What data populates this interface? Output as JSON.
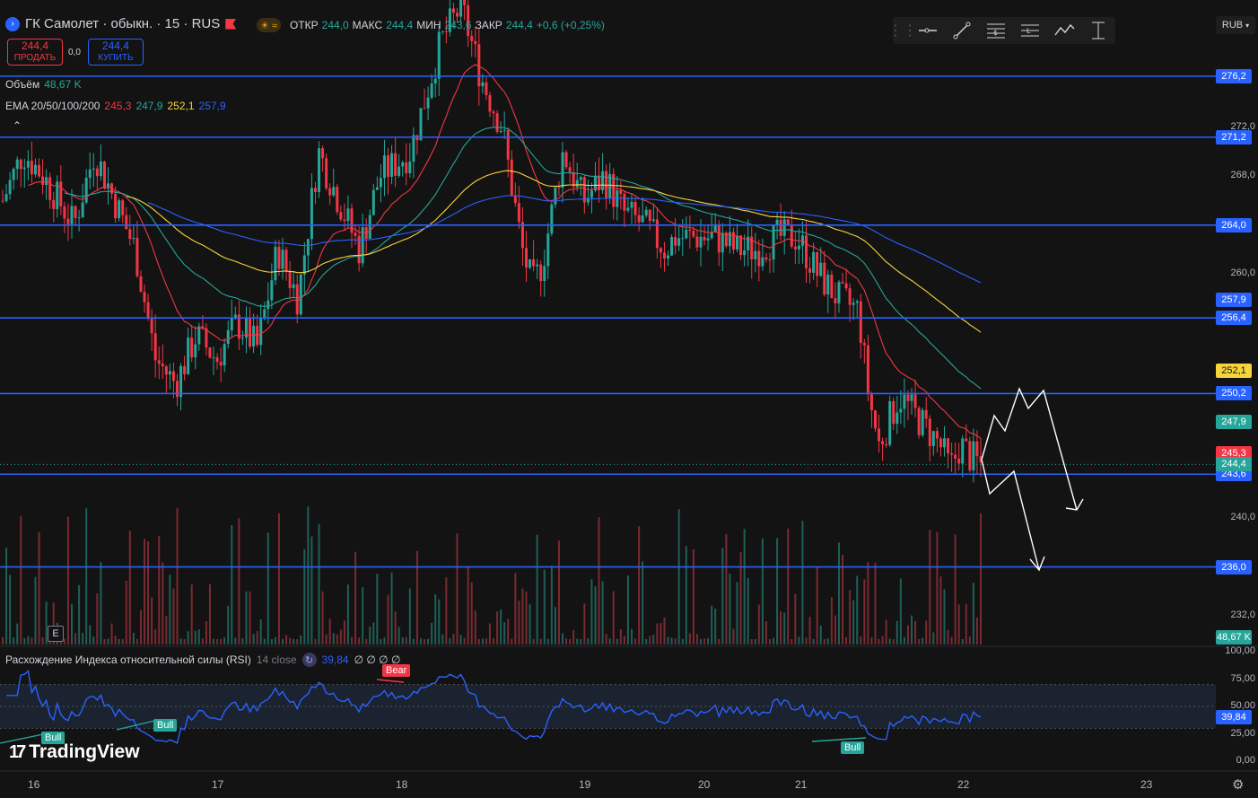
{
  "header": {
    "title": "ГК Самолет · обыкн. · 15 · RUS",
    "ohlc": [
      {
        "k": "ОТКР",
        "v": "244,0"
      },
      {
        "k": "МАКС",
        "v": "244,4"
      },
      {
        "k": "МИН",
        "v": "243,6"
      },
      {
        "k": "ЗАКР",
        "v": "244,4"
      }
    ],
    "change": "+0,6 (+0,25%)"
  },
  "trade": {
    "sell_price": "244,4",
    "sell_label": "ПРОДАТЬ",
    "spread": "0,0",
    "buy_price": "244,4",
    "buy_label": "КУПИТЬ"
  },
  "indicators": {
    "volume_label": "Объём",
    "volume_value": "48,67 K",
    "ema_label": "EMA 20/50/100/200",
    "ema_values": [
      "245,3",
      "247,9",
      "252,1",
      "257,9"
    ]
  },
  "currency": "RUB",
  "rsi": {
    "title": "Расхождение Индекса относительной силы (RSI)",
    "params": "14 close",
    "value": "39,84",
    "extra": "∅ ∅ ∅ ∅",
    "levels": [
      "100,00",
      "75,00",
      "50,00",
      "25,00",
      "0,00"
    ],
    "divergences": [
      {
        "label": "Bull",
        "type": "bull"
      },
      {
        "label": "Bull",
        "type": "bull"
      },
      {
        "label": "Bear",
        "type": "bear"
      },
      {
        "label": "Bull",
        "type": "bull"
      }
    ]
  },
  "brand": "TradingView",
  "e_badge": "E",
  "colors": {
    "up": "#26a69a",
    "down": "#f23645",
    "accent": "#2962ff",
    "rsi": "#2962ff"
  },
  "chart_data": {
    "type": "candlestick",
    "symbol": "ГК Самолет · обыкн.",
    "interval": "15",
    "price_range": [
      230.5,
      282
    ],
    "x_ticks": [
      "16",
      "17",
      "18",
      "19",
      "20",
      "21",
      "22",
      "23"
    ],
    "price_ticks": [
      "272,0",
      "268,0",
      "260,0",
      "240,0",
      "232,0"
    ],
    "horizontal_levels": [
      "276,2",
      "271,2",
      "264,0",
      "256,4",
      "250,2",
      "243,6",
      "236,0"
    ],
    "ema_tags": [
      {
        "label": "252,1",
        "color": "#f7d43c"
      },
      {
        "label": "247,9",
        "color": "#26a69a"
      },
      {
        "label": "245,3",
        "color": "#f23645"
      },
      {
        "label": "257,9",
        "color": "#2962ff"
      }
    ],
    "last_price_tag": {
      "label": "244,4",
      "color": "#26a69a"
    },
    "volume_tag": "48,67 K",
    "close_path": [
      [
        0,
        266
      ],
      [
        0.02,
        270
      ],
      [
        0.04,
        268
      ],
      [
        0.07,
        264
      ],
      [
        0.09,
        270
      ],
      [
        0.11,
        266
      ],
      [
        0.13,
        262
      ],
      [
        0.15,
        253
      ],
      [
        0.17,
        251
      ],
      [
        0.19,
        255
      ],
      [
        0.21,
        253
      ],
      [
        0.23,
        256
      ],
      [
        0.25,
        254
      ],
      [
        0.27,
        262
      ],
      [
        0.29,
        258
      ],
      [
        0.31,
        270
      ],
      [
        0.33,
        266
      ],
      [
        0.35,
        262
      ],
      [
        0.37,
        268
      ],
      [
        0.4,
        270
      ],
      [
        0.43,
        279
      ],
      [
        0.45,
        282
      ],
      [
        0.47,
        276
      ],
      [
        0.49,
        272
      ],
      [
        0.51,
        262
      ],
      [
        0.52,
        259
      ],
      [
        0.53,
        261
      ],
      [
        0.55,
        270
      ],
      [
        0.57,
        266
      ],
      [
        0.59,
        268
      ],
      [
        0.61,
        265
      ],
      [
        0.63,
        264
      ],
      [
        0.65,
        262
      ],
      [
        0.66,
        263
      ],
      [
        0.68,
        263
      ],
      [
        0.7,
        263
      ],
      [
        0.72,
        262
      ],
      [
        0.74,
        262
      ],
      [
        0.76,
        263
      ],
      [
        0.78,
        263
      ],
      [
        0.8,
        260
      ],
      [
        0.82,
        258
      ],
      [
        0.84,
        257
      ],
      [
        0.85,
        250
      ],
      [
        0.86,
        246
      ],
      [
        0.87,
        248
      ],
      [
        0.88,
        250
      ],
      [
        0.9,
        248
      ],
      [
        0.92,
        246
      ],
      [
        0.93,
        244
      ],
      [
        0.94,
        246
      ],
      [
        0.95,
        245
      ],
      [
        0.96,
        244.4
      ]
    ],
    "ema_series": [
      {
        "name": "EMA 20",
        "color": "#f23645"
      },
      {
        "name": "EMA 50",
        "color": "#26a69a"
      },
      {
        "name": "EMA 100",
        "color": "#f7d43c"
      },
      {
        "name": "EMA 200",
        "color": "#2962ff"
      }
    ]
  }
}
